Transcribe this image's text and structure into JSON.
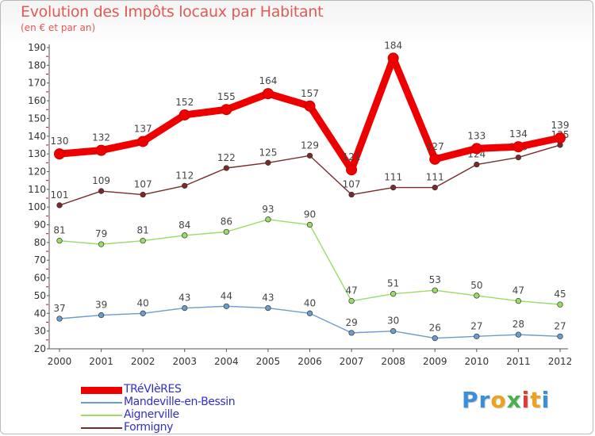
{
  "header": {
    "title": "Evolution des Impôts locaux par Habitant",
    "subtitle": "(en € et par an)"
  },
  "colors": {
    "title": "#e05a55",
    "axis": "#555555",
    "grid_dash": "#cc0000"
  },
  "logo": {
    "letters": [
      "P",
      "r",
      "o",
      "x",
      "i",
      "t",
      "i"
    ],
    "letter_colors": [
      "#3a8fd8",
      "#3a8fd8",
      "#f0a020",
      "#4caf50",
      "#e53935",
      "#f0a020",
      "#3a8fd8"
    ]
  },
  "chart_data": {
    "type": "line",
    "title": "Evolution des Impôts locaux par Habitant",
    "subtitle": "(en € et par an)",
    "xlabel": "",
    "ylabel": "",
    "categories": [
      "2000",
      "2001",
      "2002",
      "2003",
      "2004",
      "2005",
      "2006",
      "2007",
      "2008",
      "2009",
      "2010",
      "2011",
      "2012"
    ],
    "ylim": [
      20,
      190
    ],
    "yticks": [
      20,
      30,
      40,
      50,
      60,
      70,
      80,
      90,
      100,
      110,
      120,
      130,
      140,
      150,
      160,
      170,
      180,
      190
    ],
    "legend_position": "bottom-left",
    "series": [
      {
        "name": "TRéVIèRES",
        "color": "#ee0000",
        "weight": "heavy",
        "values": [
          130,
          132,
          137,
          152,
          155,
          164,
          157,
          121,
          184,
          127,
          133,
          134,
          139
        ]
      },
      {
        "name": "Mandeville-en-Bessin",
        "color": "#6a9ccf",
        "weight": "thin",
        "values": [
          37,
          39,
          40,
          43,
          44,
          43,
          40,
          29,
          30,
          26,
          27,
          28,
          27
        ]
      },
      {
        "name": "Aignerville",
        "color": "#99dd66",
        "weight": "thin",
        "values": [
          81,
          79,
          81,
          84,
          86,
          93,
          90,
          47,
          51,
          53,
          50,
          47,
          45
        ]
      },
      {
        "name": "Formigny",
        "color": "#7a2a2a",
        "weight": "thin",
        "values": [
          101,
          109,
          107,
          112,
          122,
          125,
          129,
          107,
          111,
          111,
          124,
          128,
          135
        ]
      }
    ]
  }
}
